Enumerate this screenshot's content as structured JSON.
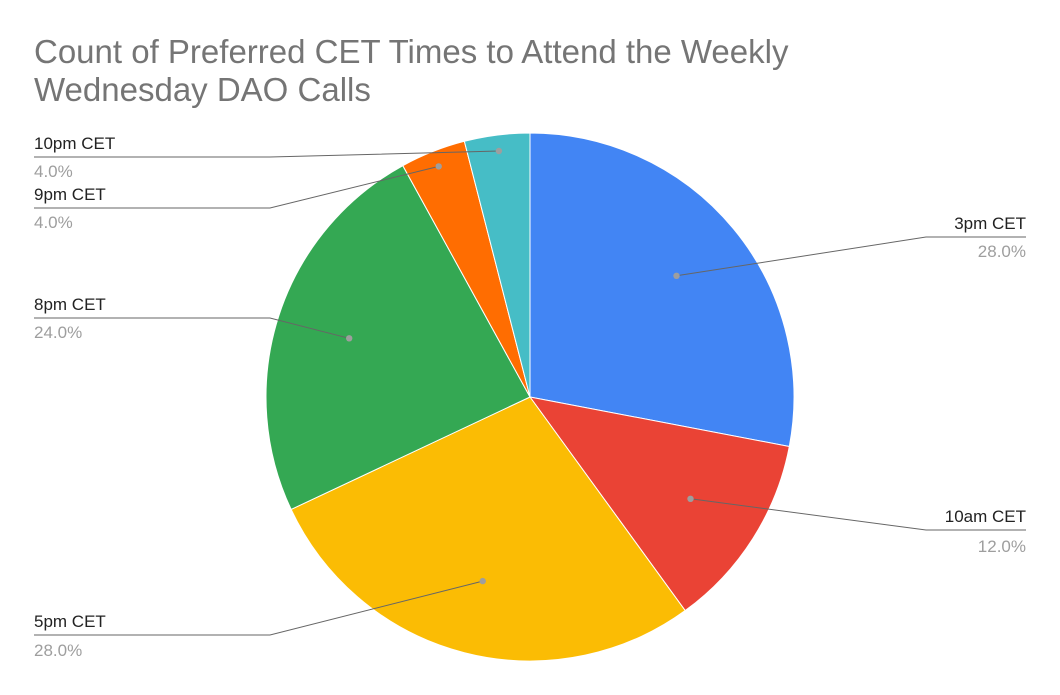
{
  "chart_data": {
    "type": "pie",
    "title_lines": [
      "Count of Preferred CET Times to Attend the Weekly",
      "Wednesday DAO Calls"
    ],
    "slices": [
      {
        "label": "3pm CET",
        "value": 28.0,
        "display": "28.0%",
        "color": "#4285f4",
        "label_side": "right"
      },
      {
        "label": "10am CET",
        "value": 12.0,
        "display": "12.0%",
        "color": "#ea4335",
        "label_side": "right"
      },
      {
        "label": "5pm CET",
        "value": 28.0,
        "display": "28.0%",
        "color": "#fbbc04",
        "label_side": "left"
      },
      {
        "label": "8pm CET",
        "value": 24.0,
        "display": "24.0%",
        "color": "#34a853",
        "label_side": "left"
      },
      {
        "label": "9pm CET",
        "value": 4.0,
        "display": "4.0%",
        "color": "#ff6d01",
        "label_side": "left"
      },
      {
        "label": "10pm CET",
        "value": 4.0,
        "display": "4.0%",
        "color": "#46bdc6",
        "label_side": "left"
      }
    ],
    "start_angle": "12 o'clock",
    "direction": "clockwise",
    "legend": "none (leader-line labels)"
  }
}
